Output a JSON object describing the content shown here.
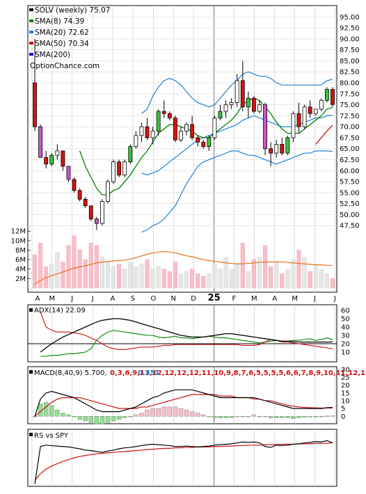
{
  "chart_data": {
    "type": "candlestick",
    "ticker_label": "SOLV (weekly)",
    "last_close": "75.07",
    "watermark": "OptionChance.com",
    "price_axis": {
      "ylim": [
        45.0,
        96.0
      ],
      "ticks": [
        "95.00",
        "92.50",
        "90.00",
        "87.50",
        "85.00",
        "82.50",
        "80.00",
        "77.50",
        "75.00",
        "72.50",
        "70.00",
        "67.50",
        "65.00",
        "62.50",
        "60.00",
        "57.50",
        "55.00",
        "52.50",
        "50.00",
        "47.50"
      ]
    },
    "volume_axis": {
      "ticks": [
        "12M",
        "10M",
        "8M",
        "6M",
        "4M",
        "2M"
      ]
    },
    "x_months": [
      "A",
      "M",
      "J",
      "J",
      "A",
      "S",
      "O",
      "N",
      "D",
      "25",
      "F",
      "M",
      "A",
      "M",
      "J",
      "J"
    ],
    "legend": [
      {
        "label": "SOLV (weekly)",
        "value": "75.07",
        "color": "#000000"
      },
      {
        "label": "SMA(8)",
        "value": "74.39",
        "color": "#008000"
      },
      {
        "label": "SMA(20)",
        "value": "72.62",
        "color": "#1e7fd6"
      },
      {
        "label": "SMA(50)",
        "value": "70.34",
        "color": "#cc1111"
      },
      {
        "label": "SMA(200)",
        "value": "",
        "color": "#1010cc"
      }
    ],
    "candles": [
      [
        80.0,
        90.0,
        69.0,
        70.0,
        7.0
      ],
      [
        70.0,
        70.5,
        63.0,
        63.0,
        9.5
      ],
      [
        63.0,
        64.5,
        60.5,
        61.5,
        4.5
      ],
      [
        61.5,
        64.0,
        61.0,
        63.5,
        5.0
      ],
      [
        63.5,
        66.0,
        62.5,
        64.5,
        7.5
      ],
      [
        64.5,
        64.5,
        60.0,
        61.0,
        5.5
      ],
      [
        61.0,
        61.0,
        57.5,
        58.0,
        9.0
      ],
      [
        58.0,
        58.5,
        55.0,
        55.5,
        11.0
      ],
      [
        55.5,
        56.0,
        53.0,
        53.5,
        8.0
      ],
      [
        53.5,
        54.0,
        51.5,
        52.0,
        6.0
      ],
      [
        52.0,
        52.0,
        48.5,
        49.0,
        9.5
      ],
      [
        49.0,
        49.5,
        46.5,
        48.0,
        9.0
      ],
      [
        48.0,
        53.5,
        47.5,
        53.0,
        6.5
      ],
      [
        53.0,
        58.0,
        52.5,
        57.5,
        5.5
      ],
      [
        57.5,
        62.5,
        57.0,
        62.0,
        4.5
      ],
      [
        62.0,
        62.5,
        58.5,
        59.0,
        5.0
      ],
      [
        59.0,
        62.5,
        58.5,
        62.0,
        4.0
      ],
      [
        62.0,
        66.0,
        61.5,
        65.5,
        5.5
      ],
      [
        65.5,
        69.0,
        65.0,
        68.0,
        4.5
      ],
      [
        68.0,
        71.0,
        66.5,
        70.0,
        5.0
      ],
      [
        70.0,
        72.0,
        67.0,
        67.5,
        6.0
      ],
      [
        67.5,
        70.0,
        66.0,
        69.0,
        4.0
      ],
      [
        69.0,
        74.0,
        68.0,
        73.5,
        4.5
      ],
      [
        73.5,
        76.0,
        72.0,
        73.0,
        4.0
      ],
      [
        73.0,
        73.5,
        71.5,
        72.0,
        3.5
      ],
      [
        72.0,
        72.5,
        66.5,
        67.0,
        5.5
      ],
      [
        67.0,
        70.0,
        66.5,
        69.0,
        3.0
      ],
      [
        69.0,
        71.0,
        68.0,
        70.5,
        3.5
      ],
      [
        70.5,
        72.5,
        67.0,
        67.5,
        4.0
      ],
      [
        67.5,
        68.0,
        65.5,
        66.5,
        3.0
      ],
      [
        66.5,
        67.0,
        65.0,
        65.5,
        2.5
      ],
      [
        65.5,
        68.0,
        64.5,
        67.5,
        3.0
      ],
      [
        67.5,
        72.5,
        67.0,
        72.0,
        5.0
      ],
      [
        72.0,
        75.0,
        71.5,
        73.5,
        4.0
      ],
      [
        73.5,
        76.0,
        72.0,
        75.0,
        6.5
      ],
      [
        75.0,
        76.5,
        74.0,
        75.5,
        4.0
      ],
      [
        75.5,
        82.0,
        74.5,
        80.5,
        5.0
      ],
      [
        80.5,
        85.0,
        73.5,
        74.5,
        9.5
      ],
      [
        74.5,
        78.0,
        72.0,
        76.5,
        3.5
      ],
      [
        76.5,
        77.0,
        73.0,
        73.5,
        6.0
      ],
      [
        73.5,
        76.0,
        73.0,
        75.0,
        6.5
      ],
      [
        75.0,
        75.5,
        63.5,
        65.0,
        9.0
      ],
      [
        65.0,
        66.5,
        61.0,
        64.0,
        4.5
      ],
      [
        64.0,
        67.0,
        63.0,
        66.0,
        5.5
      ],
      [
        66.0,
        67.5,
        63.5,
        64.0,
        3.0
      ],
      [
        64.0,
        68.0,
        63.5,
        67.5,
        4.0
      ],
      [
        67.5,
        73.5,
        66.5,
        73.0,
        6.0
      ],
      [
        73.0,
        75.5,
        68.5,
        70.0,
        8.0
      ],
      [
        70.0,
        75.0,
        69.5,
        74.5,
        6.5
      ],
      [
        74.5,
        76.0,
        72.0,
        73.0,
        3.5
      ],
      [
        73.0,
        74.0,
        72.5,
        74.0,
        5.0
      ],
      [
        74.0,
        76.5,
        73.5,
        76.0,
        4.0
      ],
      [
        76.0,
        79.0,
        75.5,
        78.5,
        3.0
      ],
      [
        78.5,
        79.0,
        74.5,
        75.07,
        2.0
      ]
    ],
    "sma8": [
      null,
      null,
      null,
      null,
      null,
      null,
      null,
      null,
      64.5,
      61.0,
      58.5,
      56.0,
      54.5,
      54.5,
      55.5,
      56.0,
      57.5,
      59.0,
      61.0,
      63.0,
      64.5,
      66.5,
      68.5,
      69.5,
      70.5,
      70.5,
      70.0,
      69.5,
      69.0,
      68.0,
      67.5,
      67.5,
      68.5,
      69.5,
      70.5,
      71.5,
      73.0,
      75.0,
      76.0,
      76.5,
      76.0,
      74.5,
      73.0,
      71.0,
      69.5,
      68.5,
      68.5,
      68.5,
      69.5,
      70.5,
      71.5,
      72.5,
      74.0,
      74.39
    ],
    "sma20": [
      null,
      null,
      null,
      null,
      null,
      null,
      null,
      null,
      null,
      null,
      null,
      null,
      null,
      null,
      null,
      null,
      null,
      null,
      null,
      59.5,
      59.0,
      59.5,
      60.0,
      61.0,
      62.0,
      63.0,
      64.0,
      65.0,
      66.0,
      67.0,
      67.5,
      68.0,
      68.5,
      69.0,
      69.5,
      70.0,
      70.5,
      71.5,
      72.0,
      72.5,
      72.0,
      71.5,
      71.0,
      70.5,
      70.0,
      70.0,
      70.0,
      70.5,
      71.0,
      71.5,
      72.0,
      72.0,
      72.5,
      72.62
    ],
    "sma50": [
      null,
      null,
      null,
      null,
      null,
      null,
      null,
      null,
      null,
      null,
      null,
      null,
      null,
      null,
      null,
      null,
      null,
      null,
      null,
      null,
      null,
      null,
      null,
      null,
      null,
      null,
      null,
      null,
      null,
      null,
      null,
      null,
      null,
      null,
      null,
      null,
      null,
      null,
      null,
      null,
      null,
      null,
      null,
      null,
      null,
      null,
      null,
      null,
      null,
      null,
      66.0,
      67.5,
      69.0,
      70.34
    ],
    "bb_upper": [
      null,
      null,
      null,
      null,
      null,
      null,
      null,
      null,
      null,
      null,
      null,
      null,
      null,
      null,
      null,
      null,
      null,
      null,
      null,
      73.0,
      74.0,
      77.0,
      79.0,
      80.5,
      81.0,
      80.5,
      79.5,
      78.0,
      76.5,
      75.5,
      75.0,
      74.5,
      75.0,
      76.5,
      78.0,
      79.5,
      80.5,
      82.0,
      82.5,
      82.0,
      81.5,
      81.5,
      81.0,
      80.0,
      79.5,
      79.5,
      79.5,
      79.5,
      79.5,
      79.5,
      79.5,
      79.5,
      80.5,
      80.8
    ],
    "bb_lower": [
      null,
      null,
      null,
      null,
      null,
      null,
      null,
      null,
      null,
      null,
      null,
      null,
      null,
      null,
      null,
      null,
      null,
      null,
      null,
      46.0,
      46.5,
      47.5,
      48.0,
      49.0,
      50.5,
      52.0,
      54.5,
      57.0,
      59.0,
      61.0,
      62.0,
      62.5,
      63.0,
      63.5,
      64.0,
      64.5,
      64.5,
      64.0,
      63.5,
      63.5,
      63.0,
      62.5,
      62.0,
      61.5,
      62.0,
      62.5,
      63.0,
      63.5,
      64.0,
      64.0,
      64.5,
      64.5,
      64.5,
      64.4
    ],
    "vol_avg": [
      0.8,
      1.6,
      2.2,
      2.6,
      3.0,
      3.4,
      3.8,
      4.2,
      4.5,
      4.7,
      5.0,
      5.3,
      5.5,
      5.6,
      5.7,
      5.8,
      5.9,
      6.1,
      6.4,
      6.8,
      7.1,
      7.4,
      7.6,
      7.7,
      7.6,
      7.4,
      7.1,
      6.8,
      6.6,
      6.3,
      6.0,
      5.8,
      5.6,
      5.5,
      5.3,
      5.2,
      5.1,
      5.1,
      5.2,
      5.3,
      5.4,
      5.5,
      5.5,
      5.5,
      5.5,
      5.4,
      5.3,
      5.2,
      5.1,
      5.0,
      4.9,
      4.9,
      4.8,
      4.8
    ],
    "vol_line_color": "#e8701a",
    "adx": {
      "label": "ADX(14)",
      "value": "22.09",
      "ylim": [
        0,
        65
      ],
      "ticks": [
        "60",
        "50",
        "40",
        "30",
        "20",
        "10"
      ],
      "ref_line": 20,
      "adx": [
        null,
        10,
        15,
        20,
        24,
        28,
        31,
        34,
        37,
        40,
        43,
        46,
        48,
        49,
        50,
        50,
        49,
        48,
        46,
        44,
        42,
        40,
        38,
        36,
        34,
        32,
        30,
        29,
        28,
        28,
        28,
        29,
        30,
        31,
        32,
        32,
        31,
        30,
        29,
        28,
        27,
        26,
        25,
        24,
        23,
        23,
        22.5,
        22,
        22,
        22,
        22,
        22,
        22,
        22.09
      ],
      "plus_di": [
        null,
        5,
        5,
        6,
        6,
        7,
        8,
        8,
        9,
        10,
        14,
        24,
        30,
        34,
        36,
        35,
        34,
        33,
        32,
        31,
        30,
        30,
        28,
        27,
        28,
        29,
        27,
        27,
        26,
        27,
        28,
        29,
        28,
        27,
        27,
        26,
        25,
        24,
        23,
        22,
        21,
        22,
        23,
        24,
        23,
        23,
        24,
        24,
        25,
        26,
        24,
        25,
        27,
        25
      ],
      "minus_di": [
        null,
        58,
        40,
        36,
        34,
        34,
        34,
        33,
        32,
        30,
        27,
        24,
        20,
        16,
        14,
        13,
        13,
        14,
        15,
        16,
        16,
        16,
        17,
        18,
        18,
        19,
        19,
        19,
        19,
        19,
        19,
        19,
        19,
        19,
        19,
        19,
        19,
        18,
        18,
        18,
        19,
        22,
        25,
        24,
        22,
        22,
        21,
        20,
        19,
        18,
        17,
        16,
        15,
        14
      ]
    },
    "macd": {
      "label": "MACD(8,40,9)",
      "value": "5.700",
      "signal": [
        0,
        3,
        6,
        9,
        11,
        12,
        12,
        12,
        12,
        11,
        10,
        9,
        8,
        7,
        6,
        5,
        5,
        5,
        5,
        6,
        6,
        7,
        8,
        9,
        10,
        11,
        12,
        13,
        14,
        14,
        14,
        14,
        14,
        13,
        13,
        13,
        12,
        12,
        12,
        11,
        11,
        10,
        10,
        9,
        8,
        7,
        6.5,
        6,
        5.7,
        5.5,
        5.4,
        5.3,
        5.3,
        5.344
      ],
      "histogram": "0.351",
      "signal_color": "#cc1111",
      "hist_color": "#1e7fd6",
      "ylim": [
        -3,
        31
      ],
      "ticks": [
        "30",
        "25",
        "20",
        "15",
        "10",
        "5",
        "0"
      ],
      "macd": [
        0,
        11,
        15,
        16,
        15,
        14,
        13,
        12,
        10,
        8,
        6,
        4,
        3,
        3,
        3,
        3,
        4,
        5,
        6,
        8,
        10,
        12,
        13,
        15,
        16,
        17,
        17,
        17,
        17,
        16,
        15,
        14,
        13,
        12,
        12,
        12,
        12,
        12,
        12,
        12,
        11,
        10,
        9,
        8,
        7,
        6,
        5,
        5,
        5,
        5,
        5,
        5,
        5.5,
        5.7
      ],
      "hist": [
        0,
        8,
        9,
        7,
        4,
        2,
        1,
        0,
        -2,
        -3,
        -4,
        -5,
        -5,
        -4,
        -3,
        -2,
        -1,
        0,
        1,
        2,
        4,
        5,
        5,
        6,
        6,
        6,
        5,
        4,
        3,
        2,
        1,
        0,
        -1,
        -1,
        -1,
        -1,
        0,
        0,
        0,
        1,
        0,
        0,
        -1,
        -1,
        -1,
        -1,
        -1.5,
        -1,
        -0.7,
        -0.5,
        -0.4,
        -0.3,
        0.2,
        0.351
      ]
    },
    "rs": {
      "label": "RS vs SPY",
      "ylim": [
        0,
        1.2
      ],
      "rs": [
        0.02,
        0.85,
        0.88,
        0.87,
        0.86,
        0.85,
        0.84,
        0.82,
        0.8,
        0.77,
        0.76,
        0.74,
        0.72,
        0.75,
        0.77,
        0.8,
        0.82,
        0.83,
        0.85,
        0.87,
        0.89,
        0.9,
        0.89,
        0.88,
        0.87,
        0.85,
        0.85,
        0.86,
        0.85,
        0.84,
        0.85,
        0.86,
        0.88,
        0.89,
        0.9,
        0.91,
        0.93,
        0.95,
        0.94,
        0.95,
        0.93,
        0.85,
        0.83,
        0.88,
        0.87,
        0.88,
        0.9,
        0.91,
        0.93,
        0.94,
        0.96,
        0.95,
        0.98,
        0.93
      ],
      "rs_avg": [
        0.1,
        0.25,
        0.35,
        0.42,
        0.47,
        0.52,
        0.56,
        0.6,
        0.63,
        0.65,
        0.67,
        0.69,
        0.7,
        0.71,
        0.72,
        0.73,
        0.74,
        0.75,
        0.76,
        0.77,
        0.78,
        0.79,
        0.8,
        0.81,
        0.81,
        0.82,
        0.82,
        0.83,
        0.83,
        0.84,
        0.84,
        0.84,
        0.85,
        0.85,
        0.86,
        0.86,
        0.87,
        0.87,
        0.88,
        0.88,
        0.88,
        0.89,
        0.89,
        0.89,
        0.9,
        0.9,
        0.9,
        0.91,
        0.91,
        0.91,
        0.92,
        0.92,
        0.92,
        0.93
      ]
    }
  }
}
